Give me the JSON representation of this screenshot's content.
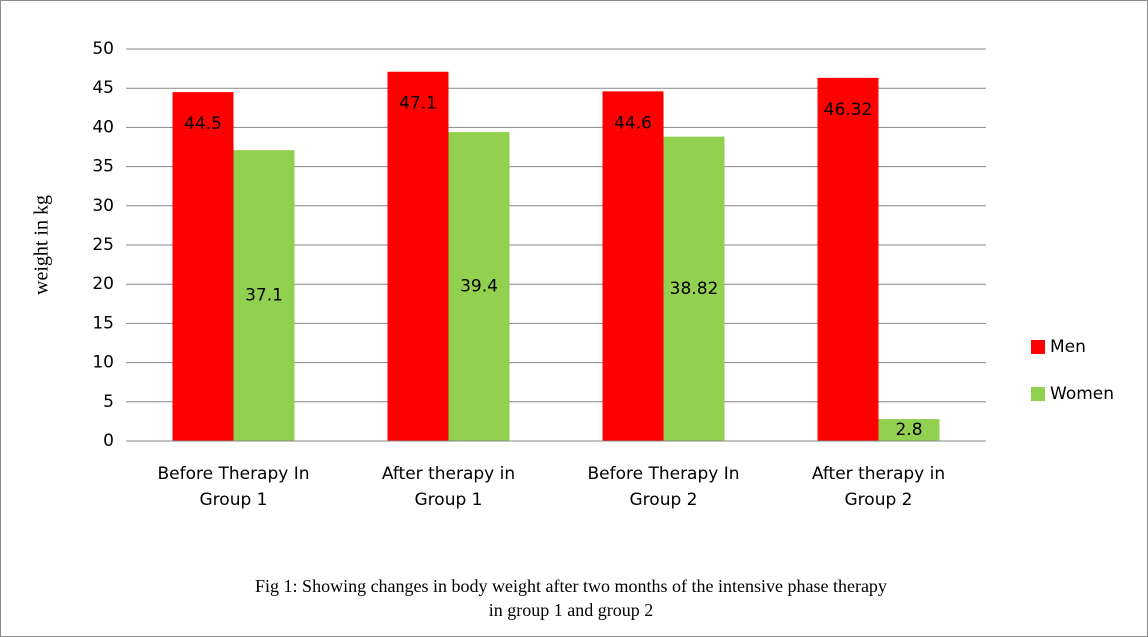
{
  "chart_data": {
    "type": "bar",
    "ylabel": "weight in kg",
    "caption": "Fig 1: Showing changes in body weight after two months of the intensive phase therapy in group 1 and group 2",
    "categories": [
      "Before Therapy In Group 1",
      "After therapy in Group 1",
      "Before Therapy In Group 2",
      "After therapy in Group 2"
    ],
    "series": [
      {
        "name": "Men",
        "color": "#ff0000",
        "values": [
          44.5,
          47.1,
          44.6,
          46.32
        ]
      },
      {
        "name": "Women",
        "color": "#92d050",
        "values": [
          37.1,
          39.4,
          38.82,
          2.8
        ]
      }
    ],
    "ylim": [
      0,
      50
    ],
    "yticks": [
      0,
      5,
      10,
      15,
      20,
      25,
      30,
      35,
      40,
      45,
      50
    ],
    "grid": true,
    "legend": "right"
  }
}
